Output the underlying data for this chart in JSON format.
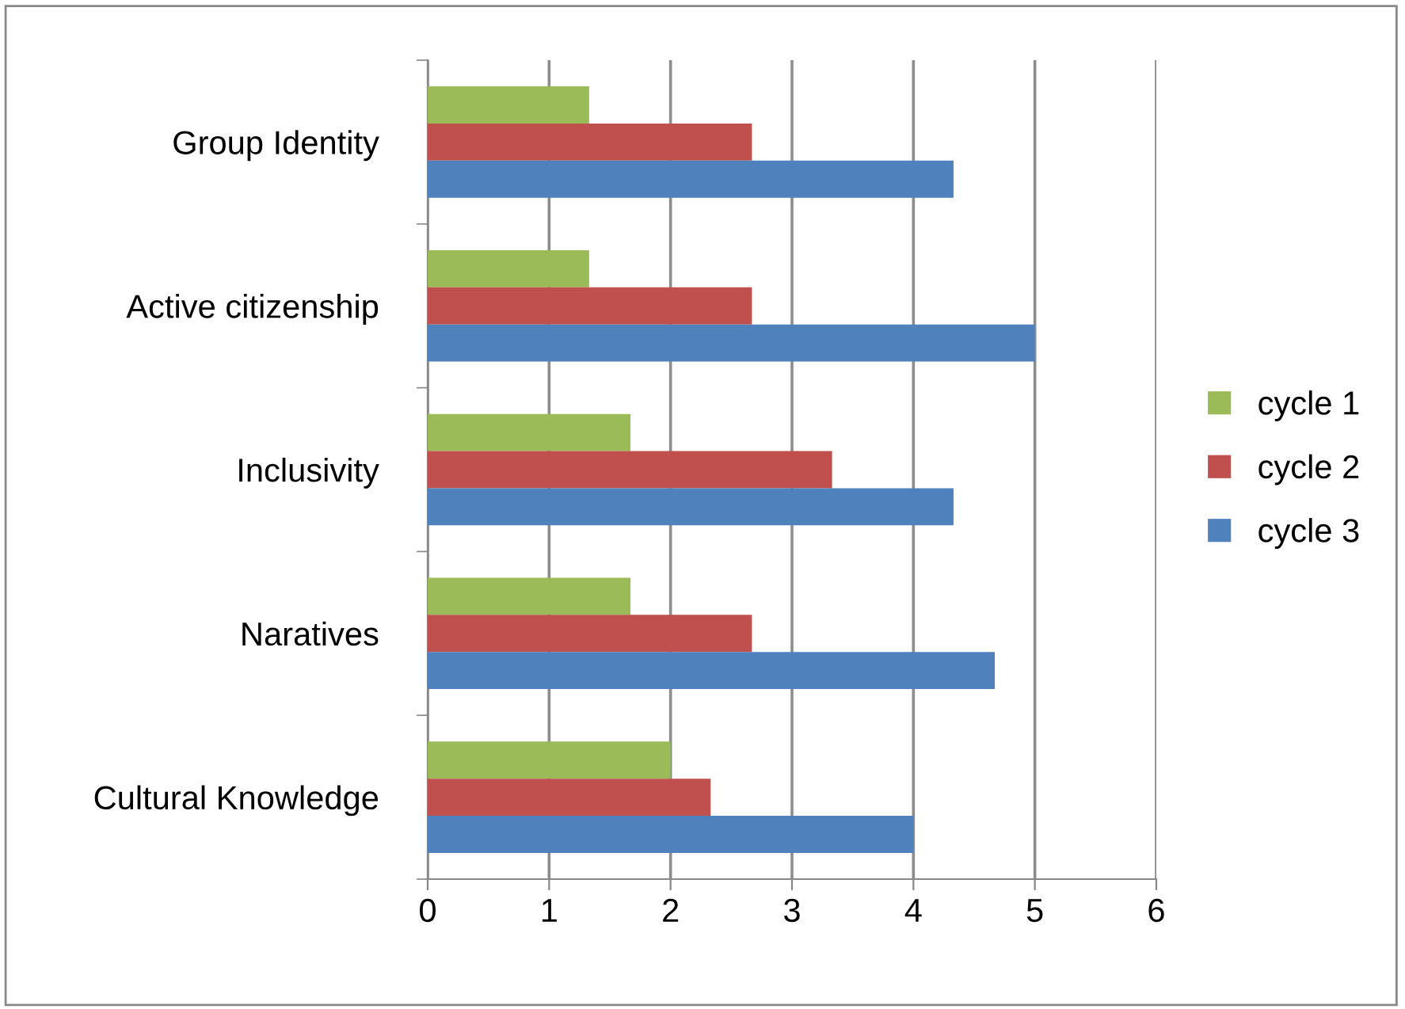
{
  "chart_data": {
    "type": "bar",
    "orientation": "horizontal",
    "categories": [
      "Group Identity",
      "Active citizenship",
      "Inclusivity",
      "Naratives",
      "Cultural Knowledge"
    ],
    "series": [
      {
        "name": "cycle 1",
        "color": "#9bbb59",
        "values": [
          1.33,
          1.33,
          1.67,
          1.67,
          2
        ]
      },
      {
        "name": "cycle 2",
        "color": "#c0504d",
        "values": [
          2.67,
          2.67,
          3.33,
          2.67,
          2.33
        ]
      },
      {
        "name": "cycle 3",
        "color": "#4f81bd",
        "values": [
          4.33,
          5,
          4.33,
          4.67,
          4
        ]
      }
    ],
    "xlim": [
      0,
      6
    ],
    "xticks": [
      0,
      1,
      2,
      3,
      4,
      5,
      6
    ],
    "grid": "x",
    "legend": "right"
  }
}
